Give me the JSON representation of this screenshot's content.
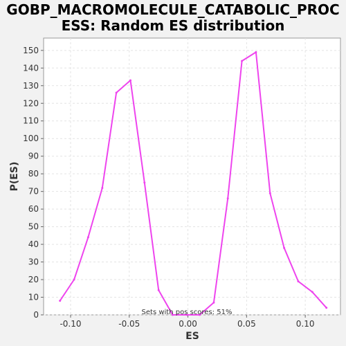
{
  "chart_data": {
    "type": "line",
    "title_lines": [
      "GOBP_MACROMOLECULE_CATABOLIC_PROC",
      "ESS: Random ES distribution"
    ],
    "xlabel": "ES",
    "ylabel": "P(ES)",
    "xlim": [
      -0.123,
      0.13
    ],
    "ylim": [
      0,
      157
    ],
    "xticks": [
      -0.1,
      -0.05,
      0.0,
      0.05,
      0.1
    ],
    "xtick_labels": [
      "-0.10",
      "-0.05",
      "0.00",
      "0.05",
      "0.10"
    ],
    "yticks": [
      0,
      10,
      20,
      30,
      40,
      50,
      60,
      70,
      80,
      90,
      100,
      110,
      120,
      130,
      140,
      150
    ],
    "ytick_labels": [
      "0",
      "10",
      "20",
      "30",
      "40",
      "50",
      "60",
      "70",
      "80",
      "90",
      "100",
      "110",
      "120",
      "130",
      "140",
      "150"
    ],
    "grid": true,
    "annotation": "Sets with pos scores: 51%",
    "series": [
      {
        "color": "#ee44ee",
        "x": [
          -0.109,
          -0.097,
          -0.085,
          -0.073,
          -0.061,
          -0.049,
          -0.037,
          -0.025,
          -0.013,
          -0.001,
          0.01,
          0.022,
          0.034,
          0.046,
          0.058,
          0.07,
          0.082,
          0.094,
          0.106,
          0.118
        ],
        "y": [
          8,
          20,
          44,
          72,
          126,
          133,
          75,
          14,
          0,
          0,
          0,
          7,
          66,
          144,
          149,
          69,
          38,
          19,
          13,
          4
        ]
      }
    ]
  }
}
